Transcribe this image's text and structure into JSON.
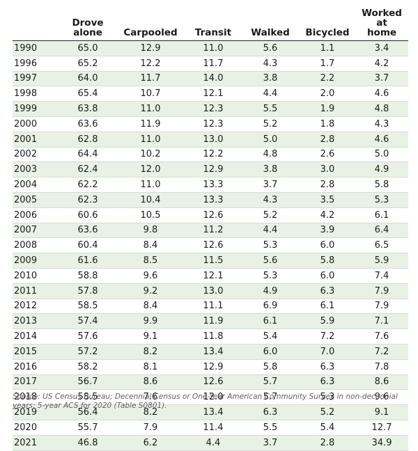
{
  "table": {
    "headers": [
      "",
      "Drove\nalone",
      "Carpooled",
      "Transit",
      "Walked",
      "Bicycled",
      "Worked at\nhome"
    ],
    "rows": [
      [
        "1990",
        "65.0",
        "12.9",
        "11.0",
        "5.6",
        "1.1",
        "3.4"
      ],
      [
        "1996",
        "65.2",
        "12.2",
        "11.7",
        "4.3",
        "1.7",
        "4.2"
      ],
      [
        "1997",
        "64.0",
        "11.7",
        "14.0",
        "3.8",
        "2.2",
        "3.7"
      ],
      [
        "1998",
        "65.4",
        "10.7",
        "12.1",
        "4.4",
        "2.0",
        "4.6"
      ],
      [
        "1999",
        "63.8",
        "11.0",
        "12.3",
        "5.5",
        "1.9",
        "4.8"
      ],
      [
        "2000",
        "63.6",
        "11.9",
        "12.3",
        "5.2",
        "1.8",
        "4.3"
      ],
      [
        "2001",
        "62.8",
        "11.0",
        "13.0",
        "5.0",
        "2.8",
        "4.6"
      ],
      [
        "2002",
        "64.4",
        "10.2",
        "12.2",
        "4.8",
        "2.6",
        "5.0"
      ],
      [
        "2003",
        "62.4",
        "12.0",
        "12.9",
        "3.8",
        "3.0",
        "4.9"
      ],
      [
        "2004",
        "62.2",
        "11.0",
        "13.3",
        "3.7",
        "2.8",
        "5.8"
      ],
      [
        "2005",
        "62.3",
        "10.4",
        "13.3",
        "4.3",
        "3.5",
        "5.3"
      ],
      [
        "2006",
        "60.6",
        "10.5",
        "12.6",
        "5.2",
        "4.2",
        "6.1"
      ],
      [
        "2007",
        "63.6",
        "9.8",
        "11.2",
        "4.4",
        "3.9",
        "6.4"
      ],
      [
        "2008",
        "60.4",
        "8.4",
        "12.6",
        "5.3",
        "6.0",
        "6.5"
      ],
      [
        "2009",
        "61.6",
        "8.5",
        "11.5",
        "5.6",
        "5.8",
        "5.9"
      ],
      [
        "2010",
        "58.8",
        "9.6",
        "12.1",
        "5.3",
        "6.0",
        "7.4"
      ],
      [
        "2011",
        "57.8",
        "9.2",
        "13.0",
        "4.9",
        "6.3",
        "7.9"
      ],
      [
        "2012",
        "58.5",
        "8.4",
        "11.1",
        "6.9",
        "6.1",
        "7.9"
      ],
      [
        "2013",
        "57.4",
        "9.9",
        "11.9",
        "6.1",
        "5.9",
        "7.1"
      ],
      [
        "2014",
        "57.6",
        "9.1",
        "11.8",
        "5.4",
        "7.2",
        "7.6"
      ],
      [
        "2015",
        "57.2",
        "8.2",
        "13.4",
        "6.0",
        "7.0",
        "7.2"
      ],
      [
        "2016",
        "58.2",
        "8.1",
        "12.9",
        "5.8",
        "6.3",
        "7.8"
      ],
      [
        "2017",
        "56.7",
        "8.6",
        "12.6",
        "5.7",
        "6.3",
        "8.6"
      ],
      [
        "2018",
        "58.5",
        "7.6",
        "12.0",
        "5.7",
        "5.3",
        "9.6"
      ],
      [
        "2019",
        "56.4",
        "8.2",
        "13.4",
        "6.3",
        "5.2",
        "9.1"
      ],
      [
        "2020",
        "55.7",
        "7.9",
        "11.4",
        "5.5",
        "5.4",
        "12.7"
      ],
      [
        "2021",
        "46.8",
        "6.2",
        "4.4",
        "3.7",
        "2.8",
        "34.9"
      ]
    ]
  },
  "source": "Source: US Census Bureau; Decennial Census or One-Year American Community Survey in non-decennial years; 5-year ACS for 2020 (Table S0801).",
  "colors": {
    "stripe": "#e9f1e7",
    "rule": "#d2ddd0",
    "header_rule": "#222222",
    "source_text": "#5f5f5f"
  }
}
